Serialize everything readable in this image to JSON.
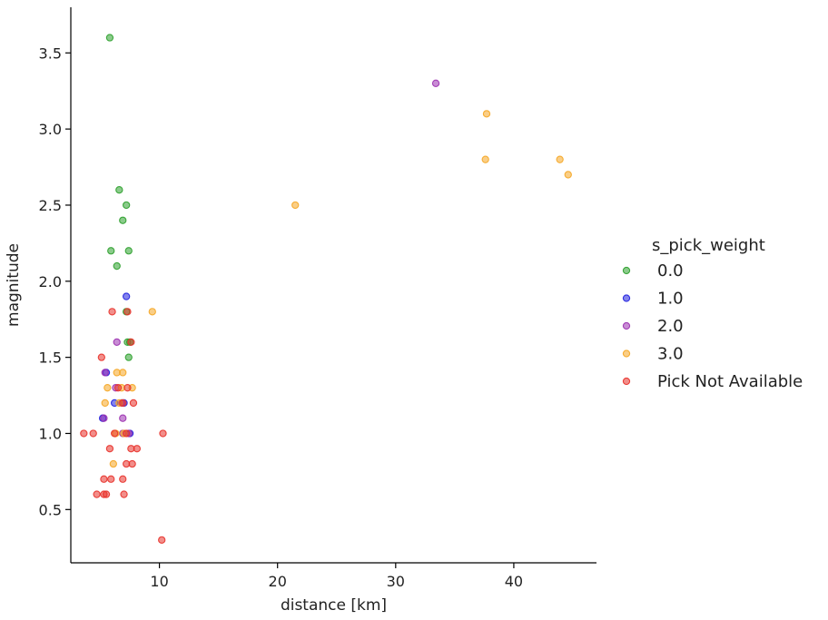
{
  "chart_data": {
    "type": "scatter",
    "xlabel": "distance [km]",
    "ylabel": "magnitude",
    "xlim": [
      2.5,
      47
    ],
    "ylim": [
      0.15,
      3.8
    ],
    "x_ticks": [
      10,
      20,
      30,
      40
    ],
    "y_ticks": [
      0.5,
      1.0,
      1.5,
      2.0,
      2.5,
      3.0,
      3.5
    ],
    "grid": false,
    "legend": {
      "title": "s_pick_weight",
      "placement": "right"
    },
    "series": [
      {
        "name": "0.0",
        "color": "#2ca02c",
        "points": [
          [
            5.8,
            3.6
          ],
          [
            6.6,
            2.6
          ],
          [
            7.2,
            2.5
          ],
          [
            6.9,
            2.4
          ],
          [
            5.9,
            2.2
          ],
          [
            7.4,
            2.2
          ],
          [
            6.4,
            2.1
          ],
          [
            7.2,
            1.8
          ],
          [
            7.3,
            1.6
          ],
          [
            7.5,
            1.6
          ],
          [
            7.4,
            1.5
          ]
        ]
      },
      {
        "name": "1.0",
        "color": "#1f1fdf",
        "points": [
          [
            7.2,
            1.9
          ],
          [
            5.5,
            1.4
          ],
          [
            5.2,
            1.1
          ],
          [
            6.2,
            1.2
          ],
          [
            7.0,
            1.2
          ],
          [
            7.5,
            1.0
          ]
        ]
      },
      {
        "name": "2.0",
        "color": "#9b30b0",
        "points": [
          [
            33.4,
            3.3
          ],
          [
            6.4,
            1.6
          ],
          [
            5.4,
            1.4
          ],
          [
            5.3,
            1.1
          ],
          [
            6.3,
            1.3
          ],
          [
            6.9,
            1.1
          ],
          [
            6.8,
            1.2
          ],
          [
            7.4,
            1.0
          ],
          [
            6.9,
            1.0
          ]
        ]
      },
      {
        "name": "3.0",
        "color": "#f5a623",
        "points": [
          [
            37.7,
            3.1
          ],
          [
            37.6,
            2.8
          ],
          [
            43.9,
            2.8
          ],
          [
            44.6,
            2.7
          ],
          [
            21.5,
            2.5
          ],
          [
            9.4,
            1.8
          ],
          [
            6.4,
            1.4
          ],
          [
            6.9,
            1.4
          ],
          [
            5.6,
            1.3
          ],
          [
            6.8,
            1.3
          ],
          [
            7.7,
            1.3
          ],
          [
            5.4,
            1.2
          ],
          [
            6.6,
            1.2
          ],
          [
            6.3,
            1.0
          ],
          [
            7.0,
            1.0
          ],
          [
            6.1,
            0.8
          ]
        ]
      },
      {
        "name": "Pick Not Available",
        "color": "#e8312a",
        "points": [
          [
            6.0,
            1.8
          ],
          [
            7.3,
            1.8
          ],
          [
            7.6,
            1.6
          ],
          [
            5.1,
            1.5
          ],
          [
            7.3,
            1.3
          ],
          [
            6.5,
            1.3
          ],
          [
            7.8,
            1.2
          ],
          [
            6.9,
            1.2
          ],
          [
            3.6,
            1.0
          ],
          [
            4.4,
            1.0
          ],
          [
            6.2,
            1.0
          ],
          [
            7.2,
            1.0
          ],
          [
            10.3,
            1.0
          ],
          [
            5.8,
            0.9
          ],
          [
            7.6,
            0.9
          ],
          [
            8.1,
            0.9
          ],
          [
            7.2,
            0.8
          ],
          [
            7.7,
            0.8
          ],
          [
            5.3,
            0.7
          ],
          [
            5.9,
            0.7
          ],
          [
            6.9,
            0.7
          ],
          [
            4.7,
            0.6
          ],
          [
            5.3,
            0.6
          ],
          [
            5.5,
            0.6
          ],
          [
            7.0,
            0.6
          ],
          [
            10.2,
            0.3
          ]
        ]
      }
    ]
  }
}
